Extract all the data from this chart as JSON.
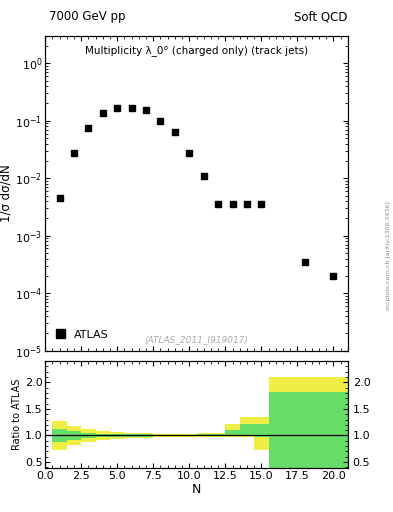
{
  "title_left": "7000 GeV pp",
  "title_right": "Soft QCD",
  "inner_title": "Multiplicity λ_0° (charged only) (track jets)",
  "watermark": "(ATLAS_2011_I919017)",
  "arxiv_label": "mcplots.cern.ch [arXiv:1306.3436]",
  "legend_label": "ATLAS",
  "data_x": [
    1,
    2,
    3,
    4,
    5,
    6,
    7,
    8,
    9,
    10,
    11,
    12,
    13,
    14,
    15,
    18,
    20
  ],
  "data_y": [
    0.0045,
    0.028,
    0.075,
    0.135,
    0.165,
    0.165,
    0.155,
    0.1,
    0.065,
    0.028,
    0.011,
    0.0035,
    0.0035,
    0.0035,
    0.0035,
    0.00035,
    0.0002
  ],
  "main_ylabel": "1/σ dσ/dN",
  "main_ylim_log": [
    1e-05,
    3
  ],
  "main_xlim": [
    0,
    21
  ],
  "ratio_ylabel": "Ratio to ATLAS",
  "ratio_xlabel": "N",
  "ratio_ylim": [
    0.38,
    2.4
  ],
  "ratio_yticks": [
    0.5,
    1.0,
    1.5,
    2.0
  ],
  "green_color": "#66dd66",
  "yellow_color": "#eeee44",
  "ratio_bins_x": [
    0.5,
    1.5,
    2.5,
    3.5,
    4.5,
    5.5,
    6.5,
    7.5,
    8.5,
    9.5,
    10.5,
    11.5,
    12.5,
    13.5,
    14.5,
    15.5,
    21.5
  ],
  "ratio_green_low": [
    0.88,
    0.92,
    0.95,
    0.97,
    0.97,
    0.98,
    0.98,
    0.99,
    0.99,
    0.99,
    0.99,
    0.99,
    0.99,
    0.99,
    0.97,
    0.38,
    0.38
  ],
  "ratio_green_high": [
    1.13,
    1.08,
    1.05,
    1.03,
    1.03,
    1.02,
    1.02,
    1.01,
    1.01,
    1.01,
    1.02,
    1.02,
    1.1,
    1.22,
    1.22,
    1.82,
    1.82
  ],
  "ratio_yellow_low": [
    0.72,
    0.82,
    0.88,
    0.92,
    0.93,
    0.95,
    0.96,
    0.97,
    0.97,
    0.97,
    0.97,
    0.97,
    0.97,
    0.97,
    0.72,
    0.38,
    0.38
  ],
  "ratio_yellow_high": [
    1.28,
    1.18,
    1.12,
    1.08,
    1.07,
    1.05,
    1.04,
    1.03,
    1.03,
    1.03,
    1.04,
    1.04,
    1.22,
    1.35,
    1.35,
    2.1,
    2.1
  ],
  "background_color": "#ffffff",
  "marker_color": "black",
  "marker_size": 4
}
